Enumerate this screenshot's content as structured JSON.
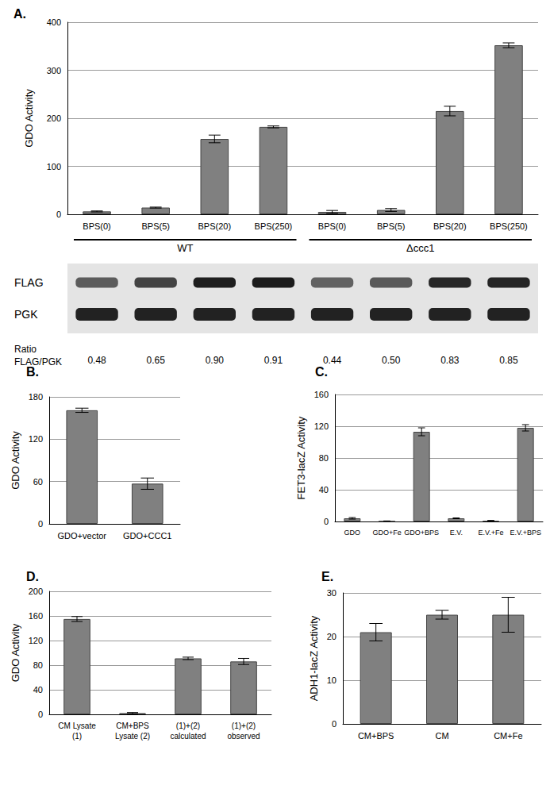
{
  "chart_data": [
    {
      "type": "bar",
      "title": "A.",
      "categories": [
        "BPS(0)",
        "BPS(5)",
        "BPS(20)",
        "BPS(250)",
        "BPS(0)",
        "BPS(5)",
        "BPS(20)",
        "BPS(250)"
      ],
      "values": [
        6,
        14,
        157,
        182,
        5,
        9,
        215,
        352
      ],
      "errors": [
        1,
        1,
        8,
        2,
        3,
        3,
        10,
        5
      ],
      "color": "#808080",
      "ylabel": "GDO Activity",
      "ylim": [
        0,
        400
      ],
      "yticks": [
        0,
        100,
        200,
        300,
        400
      ],
      "grid": true,
      "groups": [
        {
          "label": "WT",
          "count": 4
        },
        {
          "label": "Δccc1",
          "count": 4
        }
      ],
      "blot": {
        "rows": [
          "FLAG",
          "PGK"
        ],
        "ratio_label": "Ratio\nFLAG/PGK",
        "ratio_values": [
          0.48,
          0.65,
          0.9,
          0.91,
          0.44,
          0.5,
          0.83,
          0.85
        ],
        "ratio_labels": [
          "0.48",
          "0.65",
          "0.90",
          "0.91",
          "0.44",
          "0.50",
          "0.83",
          "0.85"
        ]
      }
    },
    {
      "type": "bar",
      "title": "B.",
      "categories": [
        "GDO+vector",
        "GDO+CCC1"
      ],
      "values": [
        161,
        57
      ],
      "errors": [
        3,
        8
      ],
      "color": "#808080",
      "ylabel": "GDO Activity",
      "ylim": [
        0,
        180
      ],
      "yticks": [
        0,
        60,
        120,
        180
      ],
      "grid": true
    },
    {
      "type": "bar",
      "title": "C.",
      "categories": [
        "GDO",
        "GDO+Fe",
        "GDO+BPS",
        "E.V.",
        "E.V.+Fe",
        "E.V.+BPS"
      ],
      "values": [
        4,
        0.5,
        113,
        4,
        1,
        118
      ],
      "errors": [
        1,
        0.2,
        5,
        0.5,
        0.3,
        4
      ],
      "color": "#808080",
      "ylabel": "FET3-lacZ Activity",
      "ylim": [
        0,
        160
      ],
      "yticks": [
        0,
        40,
        80,
        120,
        160
      ],
      "grid": true
    },
    {
      "type": "bar",
      "title": "D.",
      "categories": [
        "CM Lysate\n(1)",
        "CM+BPS\nLysate (2)",
        "(1)+(2)\ncalculated",
        "(1)+(2)\nobserved"
      ],
      "values": [
        155,
        2,
        91,
        86
      ],
      "errors": [
        4,
        1,
        2,
        5
      ],
      "color": "#808080",
      "ylabel": "GDO Activity",
      "ylim": [
        0,
        200
      ],
      "yticks": [
        0,
        40,
        80,
        120,
        160,
        200
      ],
      "grid": true
    },
    {
      "type": "bar",
      "title": "E.",
      "categories": [
        "CM+BPS",
        "CM",
        "CM+Fe"
      ],
      "values": [
        21,
        25,
        25
      ],
      "errors": [
        2,
        1,
        4
      ],
      "color": "#808080",
      "ylabel": "ADH1-lacZ Activity",
      "ylim": [
        0,
        30
      ],
      "yticks": [
        0,
        10,
        20,
        30
      ],
      "grid": true
    }
  ]
}
